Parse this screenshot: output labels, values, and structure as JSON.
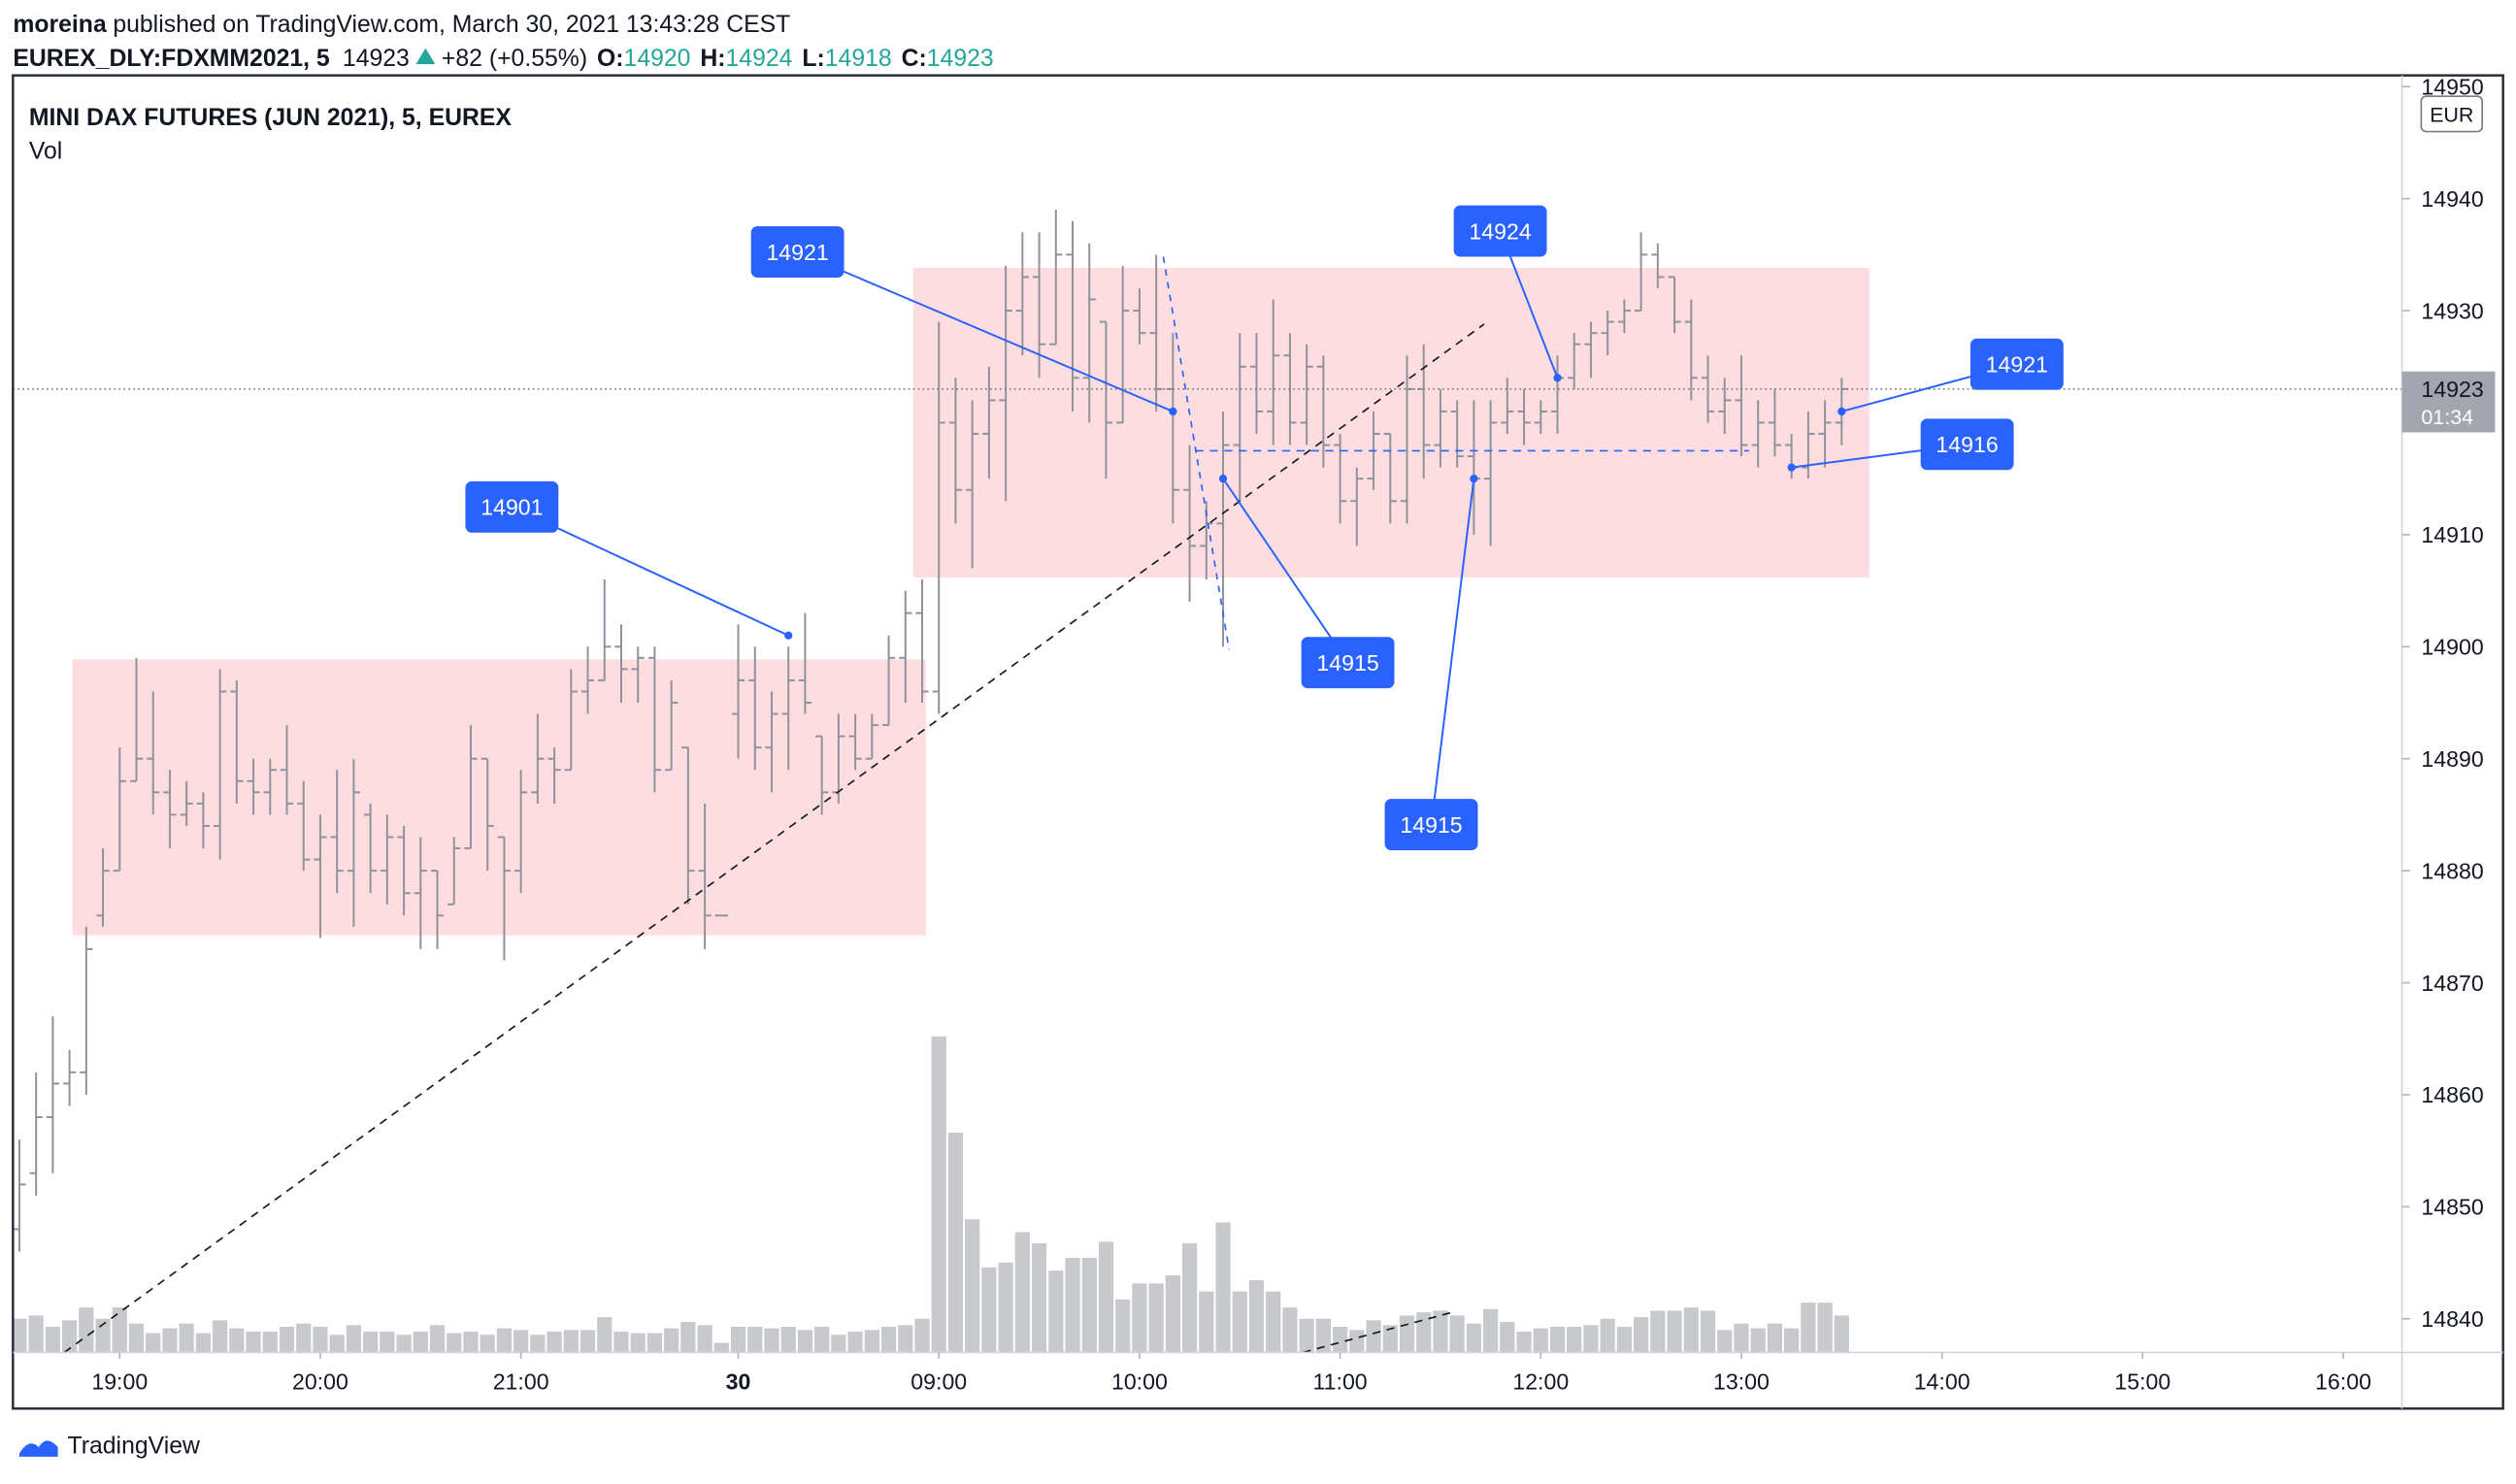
{
  "header": {
    "author": "moreina",
    "published": "published on TradingView.com, March 30, 2021 13:43:28 CEST",
    "symbol": "EUREX_DLY:FDXMM2021, 5",
    "last": 14923,
    "change": "+82 (+0.55%)",
    "labels": [
      "O:",
      "H:",
      "L:",
      "C:"
    ],
    "open": 14920,
    "high": 14924,
    "low": 14918,
    "close": 14923
  },
  "chart_data": {
    "type": "ohlc",
    "title": "MINI DAX FUTURES (JUN 2021), 5, EUREX",
    "volume_label": "Vol",
    "currency": "EUR",
    "countdown": "01:34",
    "color": "#8f929a",
    "volume_color": "#c8c9cd",
    "logo": "TradingView",
    "categories": [
      null,
      null,
      null,
      null,
      null,
      null,
      "19:00",
      null,
      null,
      null,
      null,
      null,
      null,
      null,
      null,
      null,
      null,
      null,
      "20:00",
      null,
      null,
      null,
      null,
      null,
      null,
      null,
      null,
      null,
      null,
      null,
      "21:00",
      null,
      null,
      null,
      null,
      null,
      null,
      null,
      null,
      null,
      null,
      null,
      null,
      "30",
      null,
      null,
      null,
      null,
      null,
      null,
      null,
      null,
      null,
      null,
      null,
      "09:00",
      null,
      null,
      null,
      null,
      null,
      null,
      null,
      null,
      null,
      null,
      null,
      "10:00",
      null,
      null,
      null,
      null,
      null,
      null,
      null,
      null,
      null,
      null,
      null,
      "11:00",
      null,
      null,
      null,
      null,
      null,
      null,
      null,
      null,
      null,
      null,
      null,
      "12:00",
      null,
      null,
      null,
      null,
      null,
      null,
      null,
      null,
      null,
      null,
      null,
      "13:00",
      null,
      null,
      null,
      null,
      null,
      null,
      null,
      null,
      null,
      null,
      null,
      "14:00",
      null,
      null,
      null,
      null,
      null,
      null,
      null,
      null,
      null,
      null,
      null,
      "15:00",
      null,
      null,
      null,
      null,
      null,
      null,
      null,
      null,
      null,
      null,
      null,
      "16:00",
      null,
      null,
      null
    ],
    "open": [
      14848,
      14853,
      14858,
      14861,
      14862,
      14876,
      14880,
      14888,
      14890,
      14887,
      14885,
      14886,
      14884,
      14896,
      14888,
      14887,
      14889,
      14886,
      14881,
      14883,
      14880,
      14885,
      14880,
      14883,
      14878,
      14880,
      14877,
      14882,
      14890,
      14883,
      14880,
      14887,
      14890,
      14889,
      14896,
      14897,
      14900,
      14898,
      14899,
      14889,
      14891,
      14880,
      14876,
      14894,
      14897,
      14891,
      14894,
      14897,
      14892,
      14887,
      14892,
      14890,
      14893,
      14899,
      14903,
      14896,
      14920,
      14914,
      14919,
      14922,
      14930,
      14933,
      14927,
      14935,
      14924,
      14929,
      14920,
      14930,
      14928,
      14923,
      14914,
      14909,
      14911,
      14918,
      14925,
      14921,
      14926,
      14920,
      14925,
      14918,
      14913,
      14915,
      14919,
      14913,
      14923,
      14918,
      14921,
      14917,
      14915,
      14920,
      14921,
      14920,
      14921,
      14924,
      14927,
      14928,
      14929,
      14930,
      14935,
      14933,
      14929,
      14924,
      14921,
      14922,
      14918,
      14920,
      14918,
      14916,
      14919,
      14920,
      null,
      null,
      null,
      null,
      null,
      null,
      null,
      null,
      null,
      null,
      null,
      null,
      null,
      null,
      null,
      null,
      null,
      null,
      null,
      null,
      null,
      null,
      null,
      null,
      null,
      null,
      null,
      null,
      null,
      null,
      null,
      null,
      null
    ],
    "high": [
      14856,
      14862,
      14867,
      14864,
      14875,
      14882,
      14891,
      14899,
      14896,
      14889,
      14888,
      14887,
      14898,
      14897,
      14890,
      14890,
      14893,
      14888,
      14885,
      14889,
      14890,
      14886,
      14885,
      14884,
      14883,
      14880,
      14883,
      14893,
      14890,
      14883,
      14889,
      14894,
      14891,
      14898,
      14900,
      14906,
      14902,
      14900,
      14900,
      14897,
      14891,
      14886,
      14876,
      14902,
      14900,
      14896,
      14900,
      14903,
      14892,
      14894,
      14894,
      14894,
      14901,
      14905,
      14906,
      14929,
      14924,
      14922,
      14925,
      14934,
      14937,
      14937,
      14939,
      14938,
      14936,
      14929,
      14934,
      14932,
      14935,
      14928,
      14918,
      14913,
      14921,
      14928,
      14928,
      14931,
      14928,
      14927,
      14926,
      14919,
      14916,
      14921,
      14919,
      14926,
      14927,
      14923,
      14922,
      14922,
      14922,
      14924,
      14923,
      14922,
      14926,
      14928,
      14929,
      14930,
      14931,
      14937,
      14936,
      14933,
      14931,
      14926,
      14924,
      14926,
      14922,
      14923,
      14919,
      14921,
      14922,
      14924,
      null,
      null,
      null,
      null,
      null,
      null,
      null,
      null,
      null,
      null,
      null,
      null,
      null,
      null,
      null,
      null,
      null,
      null,
      null,
      null,
      null,
      null,
      null,
      null,
      null,
      null,
      null,
      null,
      null,
      null,
      null,
      null,
      null
    ],
    "low": [
      14846,
      14851,
      14853,
      14859,
      14860,
      14875,
      14880,
      14888,
      14885,
      14882,
      14884,
      14882,
      14881,
      14886,
      14885,
      14885,
      14885,
      14880,
      14874,
      14878,
      14875,
      14878,
      14877,
      14876,
      14873,
      14873,
      14877,
      14882,
      14880,
      14872,
      14878,
      14886,
      14886,
      14889,
      14894,
      14897,
      14895,
      14895,
      14887,
      14889,
      14877,
      14873,
      14876,
      14890,
      14889,
      14887,
      14889,
      14894,
      14885,
      14886,
      14889,
      14890,
      14893,
      14895,
      14895,
      14894,
      14911,
      14907,
      14915,
      14913,
      14926,
      14924,
      14927,
      14921,
      14920,
      14915,
      14920,
      14927,
      14921,
      14911,
      14904,
      14906,
      14900,
      14913,
      14919,
      14918,
      14918,
      14918,
      14916,
      14911,
      14909,
      14914,
      14911,
      14911,
      14915,
      14916,
      14916,
      14910,
      14909,
      14919,
      14918,
      14919,
      14919,
      14923,
      14924,
      14926,
      14928,
      14930,
      14932,
      14928,
      14922,
      14920,
      14919,
      14917,
      14916,
      14917,
      14915,
      14915,
      14916,
      14918,
      null,
      null,
      null,
      null,
      null,
      null,
      null,
      null,
      null,
      null,
      null,
      null,
      null,
      null,
      null,
      null,
      null,
      null,
      null,
      null,
      null,
      null,
      null,
      null,
      null,
      null,
      null,
      null,
      null,
      null,
      null,
      null,
      null
    ],
    "close": [
      14852,
      14858,
      14861,
      14862,
      14873,
      14880,
      14888,
      14890,
      14887,
      14885,
      14886,
      14884,
      14896,
      14888,
      14887,
      14889,
      14886,
      14881,
      14883,
      14880,
      14887,
      14880,
      14883,
      14878,
      14880,
      14876,
      14882,
      14890,
      14884,
      14880,
      14887,
      14890,
      14889,
      14896,
      14897,
      14900,
      14898,
      14899,
      14889,
      14895,
      14880,
      14876,
      14876,
      14897,
      14891,
      14894,
      14897,
      14895,
      14887,
      14892,
      14890,
      14893,
      14899,
      14903,
      14896,
      14920,
      14914,
      14919,
      14922,
      14930,
      14933,
      14927,
      14935,
      14924,
      14931,
      14920,
      14930,
      14928,
      14923,
      14914,
      14909,
      14911,
      14918,
      14925,
      14921,
      14926,
      14920,
      14925,
      14918,
      14913,
      14915,
      14919,
      14913,
      14923,
      14918,
      14921,
      14917,
      14915,
      14920,
      14921,
      14920,
      14921,
      14924,
      14927,
      14928,
      14929,
      14930,
      14935,
      14933,
      14929,
      14924,
      14921,
      14922,
      14918,
      14920,
      14918,
      14916,
      14919,
      14920,
      14923,
      null,
      null,
      null,
      null,
      null,
      null,
      null,
      null,
      null,
      null,
      null,
      null,
      null,
      null,
      null,
      null,
      null,
      null,
      null,
      null,
      null,
      null,
      null,
      null,
      null,
      null,
      null,
      null,
      null,
      null,
      null,
      null,
      null
    ],
    "volume": [
      210,
      230,
      160,
      200,
      280,
      210,
      280,
      180,
      120,
      150,
      180,
      120,
      200,
      150,
      130,
      130,
      160,
      180,
      160,
      110,
      170,
      130,
      130,
      110,
      130,
      170,
      120,
      130,
      110,
      150,
      140,
      110,
      130,
      140,
      140,
      220,
      130,
      120,
      120,
      150,
      190,
      170,
      60,
      160,
      160,
      150,
      160,
      140,
      160,
      110,
      130,
      140,
      160,
      170,
      210,
      1970,
      1370,
      830,
      530,
      560,
      750,
      680,
      510,
      590,
      590,
      690,
      330,
      430,
      430,
      480,
      680,
      380,
      810,
      380,
      450,
      380,
      280,
      210,
      210,
      160,
      140,
      200,
      170,
      230,
      250,
      260,
      230,
      180,
      270,
      190,
      130,
      150,
      160,
      160,
      170,
      210,
      160,
      220,
      260,
      260,
      280,
      260,
      140,
      180,
      150,
      180,
      150,
      310,
      310,
      230,
      null,
      null,
      null,
      null,
      null,
      null,
      null,
      null,
      null,
      null,
      null,
      null,
      null,
      null,
      null,
      null,
      null,
      null,
      null,
      null,
      null,
      null,
      null,
      null,
      null,
      null,
      null,
      null,
      null,
      null,
      null,
      null,
      null
    ],
    "ylim": [
      14837,
      14951
    ],
    "yticks": [
      14840,
      14850,
      14860,
      14870,
      14880,
      14890,
      14900,
      14910,
      14920,
      14930,
      14940,
      14950
    ],
    "annotations": [
      14921,
      14901,
      14915,
      14924,
      14915,
      14921,
      14916
    ],
    "annotation_color": "#2962ff"
  }
}
